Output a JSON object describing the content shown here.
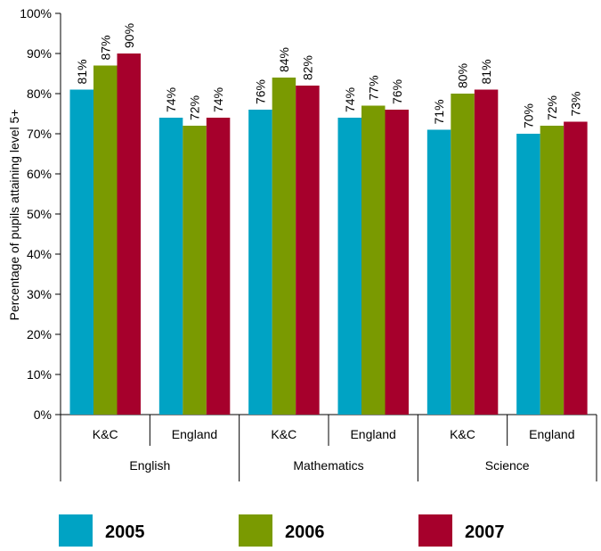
{
  "chart_data": {
    "type": "bar",
    "title": "",
    "xlabel": "",
    "ylabel": "Percentage of pupils attaining level 5+",
    "ylim": [
      0,
      100
    ],
    "y_ticks": [
      "0%",
      "10%",
      "20%",
      "30%",
      "40%",
      "50%",
      "60%",
      "70%",
      "80%",
      "90%",
      "100%"
    ],
    "grid": false,
    "legend_position": "bottom",
    "groups": [
      "English",
      "Mathematics",
      "Science"
    ],
    "categories": [
      "K&C",
      "England",
      "K&C",
      "England",
      "K&C",
      "England"
    ],
    "series": [
      {
        "name": "2005",
        "color": "#00a3c4",
        "values": [
          81,
          74,
          76,
          74,
          71,
          70
        ],
        "labels": [
          "81%",
          "74%",
          "76%",
          "74%",
          "71%",
          "70%"
        ]
      },
      {
        "name": "2006",
        "color": "#7a9a01",
        "values": [
          87,
          72,
          84,
          77,
          80,
          72
        ],
        "labels": [
          "87%",
          "72%",
          "84%",
          "77%",
          "80%",
          "72%"
        ]
      },
      {
        "name": "2007",
        "color": "#a6002c",
        "values": [
          90,
          74,
          82,
          76,
          81,
          73
        ],
        "labels": [
          "90%",
          "74%",
          "82%",
          "76%",
          "81%",
          "73%"
        ]
      }
    ]
  }
}
